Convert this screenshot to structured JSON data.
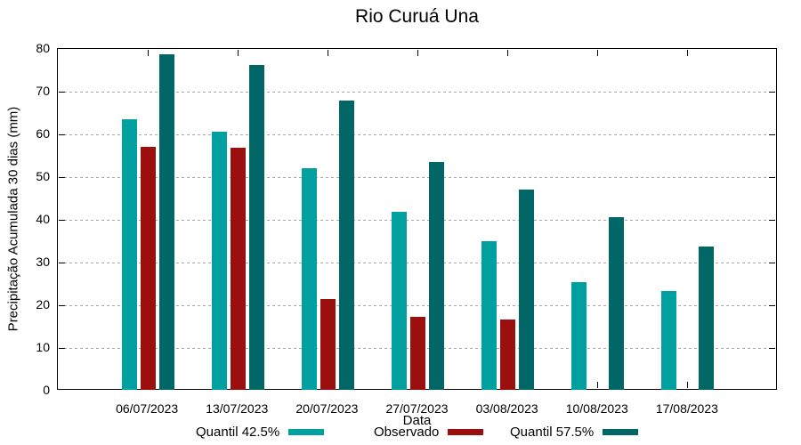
{
  "chart_data": {
    "type": "bar",
    "title": "Rio Curuá Una",
    "xlabel": "Data",
    "ylabel": "Precipitação Acumulada 30 dias (mm)",
    "ylim": [
      0,
      80
    ],
    "ytick_step": 10,
    "grid": true,
    "grid_style": "dashed",
    "legend_position": "bottom",
    "categories": [
      "06/07/2023",
      "13/07/2023",
      "20/07/2023",
      "27/07/2023",
      "03/08/2023",
      "10/08/2023",
      "17/08/2023"
    ],
    "series": [
      {
        "name": "Quantil 42.5%",
        "color": "#00A0A0",
        "values": [
          63.5,
          60.6,
          52.0,
          41.9,
          35.0,
          25.4,
          23.3
        ]
      },
      {
        "name": "Observado",
        "color": "#9B0F0F",
        "values": [
          57.0,
          56.8,
          21.4,
          17.2,
          16.6,
          null,
          null
        ]
      },
      {
        "name": "Quantil 57.5%",
        "color": "#006666",
        "values": [
          78.7,
          76.2,
          68.0,
          53.5,
          47.0,
          40.6,
          33.8
        ]
      }
    ]
  }
}
